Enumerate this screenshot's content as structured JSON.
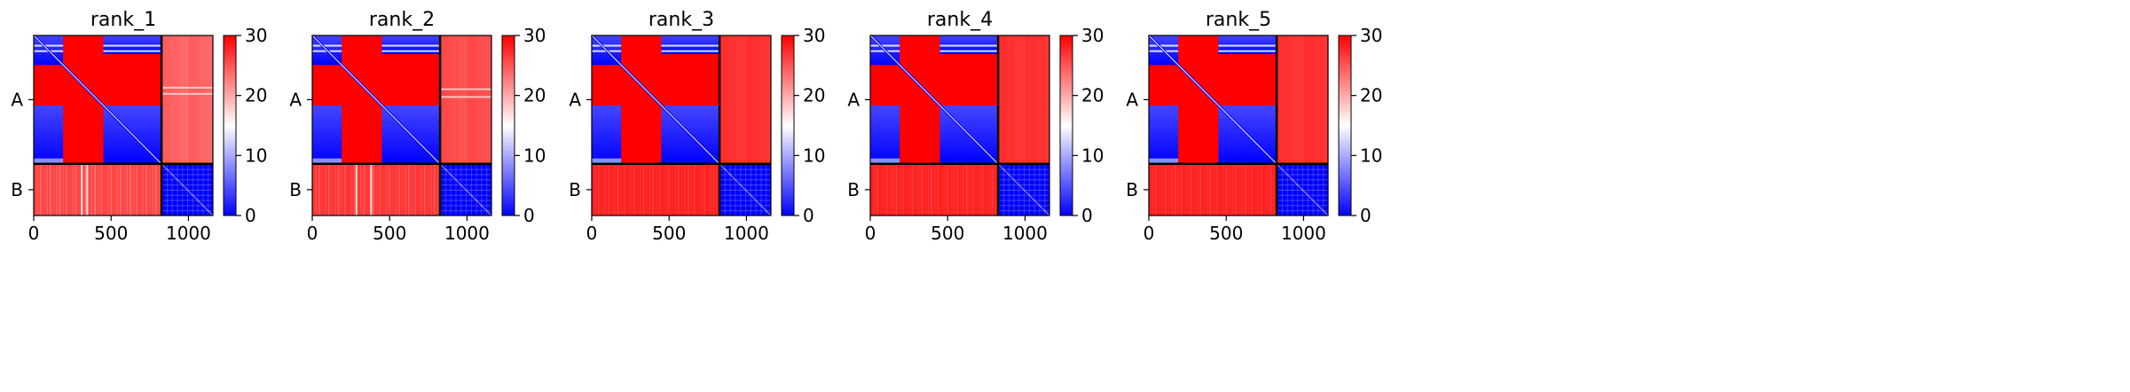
{
  "chart_data": [
    {
      "type": "heatmap",
      "title": "rank_1",
      "y_tick_labels": [
        "A",
        "B"
      ],
      "x_ticks": [
        0,
        500,
        1000
      ],
      "xlim": [
        0,
        1158
      ],
      "chain_boundary": 826,
      "colorbar": {
        "ticks": [
          0,
          10,
          20,
          30
        ],
        "range": [
          0,
          30
        ],
        "colormap": "bwr"
      },
      "description_blocks": {
        "A_A_diag_blocks": "low (blue)",
        "A_A_offdiag": "high (red)",
        "A_B": "high (red, lighter)",
        "B_B": "low (blue)"
      }
    },
    {
      "type": "heatmap",
      "title": "rank_2",
      "y_tick_labels": [
        "A",
        "B"
      ],
      "x_ticks": [
        0,
        500,
        1000
      ],
      "xlim": [
        0,
        1158
      ],
      "chain_boundary": 826,
      "colorbar": {
        "ticks": [
          0,
          10,
          20,
          30
        ],
        "range": [
          0,
          30
        ],
        "colormap": "bwr"
      },
      "description_blocks": {
        "A_A_diag_blocks": "low (blue)",
        "A_A_offdiag": "high (red)",
        "A_B": "high (red)",
        "B_B": "low (blue)"
      }
    },
    {
      "type": "heatmap",
      "title": "rank_3",
      "y_tick_labels": [
        "A",
        "B"
      ],
      "x_ticks": [
        0,
        500,
        1000
      ],
      "xlim": [
        0,
        1158
      ],
      "chain_boundary": 826,
      "colorbar": {
        "ticks": [
          0,
          10,
          20,
          30
        ],
        "range": [
          0,
          30
        ],
        "colormap": "bwr"
      },
      "description_blocks": {
        "A_A_diag_blocks": "low (blue)",
        "A_A_offdiag": "high (red)",
        "A_B": "high (red)",
        "B_B": "low (blue)"
      }
    },
    {
      "type": "heatmap",
      "title": "rank_4",
      "y_tick_labels": [
        "A",
        "B"
      ],
      "x_ticks": [
        0,
        500,
        1000
      ],
      "xlim": [
        0,
        1158
      ],
      "chain_boundary": 826,
      "colorbar": {
        "ticks": [
          0,
          10,
          20,
          30
        ],
        "range": [
          0,
          30
        ],
        "colormap": "bwr"
      },
      "description_blocks": {
        "A_A_diag_blocks": "low (blue)",
        "A_A_offdiag": "high (red)",
        "A_B": "high (red)",
        "B_B": "low (blue)"
      }
    },
    {
      "type": "heatmap",
      "title": "rank_5",
      "y_tick_labels": [
        "A",
        "B"
      ],
      "x_ticks": [
        0,
        500,
        1000
      ],
      "xlim": [
        0,
        1158
      ],
      "chain_boundary": 826,
      "colorbar": {
        "ticks": [
          0,
          10,
          20,
          30
        ],
        "range": [
          0,
          30
        ],
        "colormap": "bwr"
      },
      "description_blocks": {
        "A_A_diag_blocks": "low (blue)",
        "A_A_offdiag": "high (red)",
        "A_B": "high (red)",
        "B_B": "low (blue)"
      }
    }
  ],
  "colors": {
    "low": "#0000ff",
    "mid": "#ffffff",
    "high": "#ff0000"
  }
}
